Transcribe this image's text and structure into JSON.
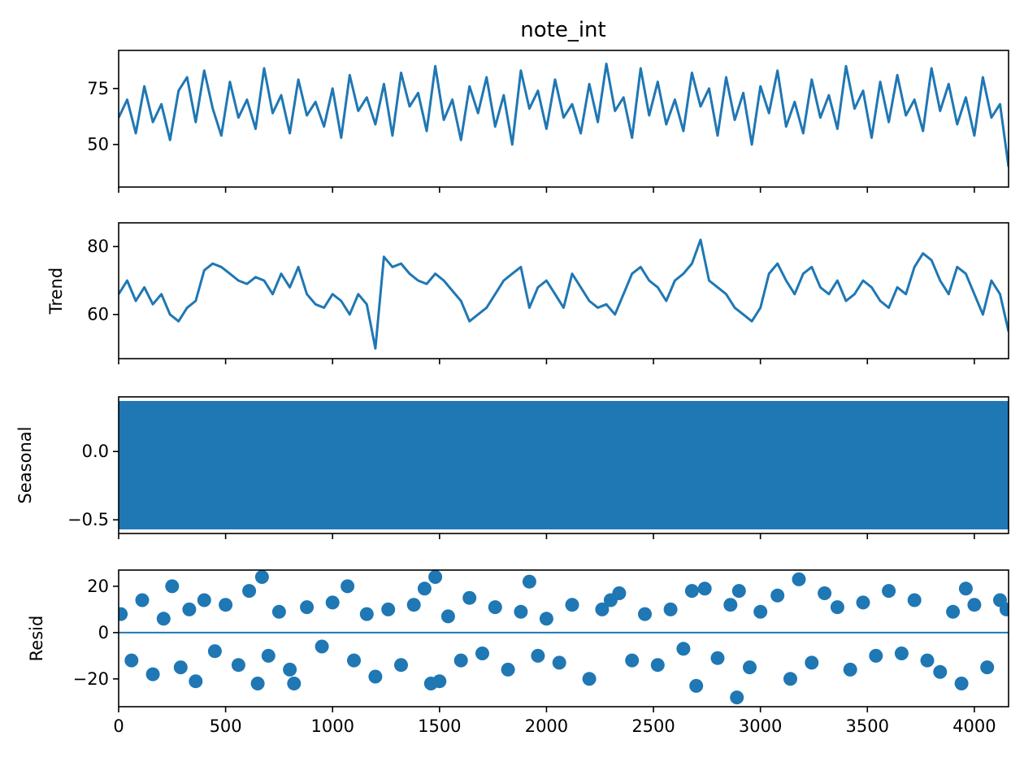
{
  "chart_data": {
    "type": "line",
    "title": "note_int",
    "grid": false,
    "series_color": "#1f77b4",
    "x_range": [
      0,
      4160
    ],
    "x_ticks": [
      0,
      500,
      1000,
      1500,
      2000,
      2500,
      3000,
      3500,
      4000
    ],
    "x_tick_labels": [
      "0",
      "500",
      "1000",
      "1500",
      "2000",
      "2500",
      "3000",
      "3500",
      "4000"
    ],
    "panels": [
      {
        "id": "observed",
        "type": "line",
        "ylabel": "",
        "ylim": [
          31,
          92
        ],
        "y_ticks": [
          50,
          75
        ],
        "y_tick_labels": [
          "50",
          "75"
        ],
        "x_tick_labels_visible": false,
        "series": [
          {
            "x": [
              0,
              40,
              80,
              120,
              160,
              200,
              240,
              280,
              320,
              360,
              400,
              440,
              480,
              520,
              560,
              600,
              640,
              680,
              720,
              760,
              800,
              840,
              880,
              920,
              960,
              1000,
              1040,
              1080,
              1120,
              1160,
              1200,
              1240,
              1280,
              1320,
              1360,
              1400,
              1440,
              1480,
              1520,
              1560,
              1600,
              1640,
              1680,
              1720,
              1760,
              1800,
              1840,
              1880,
              1920,
              1960,
              2000,
              2040,
              2080,
              2120,
              2160,
              2200,
              2240,
              2280,
              2320,
              2360,
              2400,
              2440,
              2480,
              2520,
              2560,
              2600,
              2640,
              2680,
              2720,
              2760,
              2800,
              2840,
              2880,
              2920,
              2960,
              3000,
              3040,
              3080,
              3120,
              3160,
              3200,
              3240,
              3280,
              3320,
              3360,
              3400,
              3440,
              3480,
              3520,
              3560,
              3600,
              3640,
              3680,
              3720,
              3760,
              3800,
              3840,
              3880,
              3920,
              3960,
              4000,
              4040,
              4080,
              4120,
              4160
            ],
            "y": [
              62,
              70,
              55,
              76,
              60,
              68,
              52,
              74,
              80,
              60,
              83,
              66,
              54,
              78,
              62,
              70,
              57,
              84,
              64,
              72,
              55,
              79,
              63,
              69,
              58,
              75,
              53,
              81,
              65,
              71,
              59,
              77,
              54,
              82,
              67,
              73,
              56,
              85,
              61,
              70,
              52,
              76,
              64,
              80,
              58,
              72,
              50,
              83,
              66,
              74,
              57,
              79,
              62,
              68,
              55,
              77,
              60,
              86,
              65,
              71,
              53,
              84,
              63,
              78,
              59,
              70,
              56,
              82,
              67,
              75,
              54,
              80,
              61,
              73,
              50,
              76,
              64,
              83,
              58,
              69,
              55,
              79,
              62,
              72,
              57,
              85,
              66,
              74,
              53,
              78,
              60,
              81,
              63,
              70,
              56,
              84,
              65,
              77,
              59,
              71,
              54,
              80,
              62,
              68,
              40
            ]
          }
        ]
      },
      {
        "id": "trend",
        "type": "line",
        "ylabel": "Trend",
        "ylim": [
          47,
          87
        ],
        "y_ticks": [
          60,
          80
        ],
        "y_tick_labels": [
          "60",
          "80"
        ],
        "x_tick_labels_visible": false,
        "series": [
          {
            "x": [
              0,
              40,
              80,
              120,
              160,
              200,
              240,
              280,
              320,
              360,
              400,
              440,
              480,
              520,
              560,
              600,
              640,
              680,
              720,
              760,
              800,
              840,
              880,
              920,
              960,
              1000,
              1040,
              1080,
              1120,
              1160,
              1200,
              1240,
              1280,
              1320,
              1360,
              1400,
              1440,
              1480,
              1520,
              1560,
              1600,
              1640,
              1680,
              1720,
              1760,
              1800,
              1840,
              1880,
              1920,
              1960,
              2000,
              2040,
              2080,
              2120,
              2160,
              2200,
              2240,
              2280,
              2320,
              2360,
              2400,
              2440,
              2480,
              2520,
              2560,
              2600,
              2640,
              2680,
              2720,
              2760,
              2800,
              2840,
              2880,
              2920,
              2960,
              3000,
              3040,
              3080,
              3120,
              3160,
              3200,
              3240,
              3280,
              3320,
              3360,
              3400,
              3440,
              3480,
              3520,
              3560,
              3600,
              3640,
              3680,
              3720,
              3760,
              3800,
              3840,
              3880,
              3920,
              3960,
              4000,
              4040,
              4080,
              4120,
              4160
            ],
            "y": [
              66,
              70,
              64,
              68,
              63,
              66,
              60,
              58,
              62,
              64,
              73,
              75,
              74,
              72,
              70,
              69,
              71,
              70,
              66,
              72,
              68,
              74,
              66,
              63,
              62,
              66,
              64,
              60,
              66,
              63,
              50,
              77,
              74,
              75,
              72,
              70,
              69,
              72,
              70,
              67,
              64,
              58,
              60,
              62,
              66,
              70,
              72,
              74,
              62,
              68,
              70,
              66,
              62,
              72,
              68,
              64,
              62,
              63,
              60,
              66,
              72,
              74,
              70,
              68,
              64,
              70,
              72,
              75,
              82,
              70,
              68,
              66,
              62,
              60,
              58,
              62,
              72,
              75,
              70,
              66,
              72,
              74,
              68,
              66,
              70,
              64,
              66,
              70,
              68,
              64,
              62,
              68,
              66,
              74,
              78,
              76,
              70,
              66,
              74,
              72,
              66,
              60,
              70,
              66,
              55
            ]
          }
        ]
      },
      {
        "id": "seasonal",
        "type": "area",
        "ylabel": "Seasonal",
        "ylim": [
          -0.6,
          0.4
        ],
        "y_ticks": [
          -0.5,
          0.0
        ],
        "y_tick_labels": [
          "−0.5",
          "0.0"
        ],
        "x_tick_labels_visible": false,
        "series": [
          {
            "band_min": -0.57,
            "band_max": 0.37
          }
        ]
      },
      {
        "id": "resid",
        "type": "scatter",
        "ylabel": "Resid",
        "ylim": [
          -32,
          27
        ],
        "y_ticks": [
          -20,
          0,
          20
        ],
        "y_tick_labels": [
          "−20",
          "0",
          "20"
        ],
        "x_tick_labels_visible": true,
        "series": [
          {
            "x": [
              10,
              60,
              110,
              160,
              210,
              250,
              290,
              330,
              360,
              400,
              450,
              500,
              560,
              610,
              650,
              670,
              700,
              750,
              800,
              820,
              880,
              950,
              1000,
              1070,
              1100,
              1160,
              1200,
              1260,
              1320,
              1380,
              1430,
              1460,
              1480,
              1500,
              1540,
              1600,
              1640,
              1700,
              1760,
              1820,
              1880,
              1920,
              1960,
              2000,
              2060,
              2120,
              2200,
              2260,
              2300,
              2340,
              2400,
              2460,
              2520,
              2580,
              2640,
              2680,
              2700,
              2740,
              2800,
              2860,
              2890,
              2900,
              2950,
              3000,
              3080,
              3140,
              3180,
              3240,
              3300,
              3360,
              3420,
              3480,
              3540,
              3600,
              3660,
              3720,
              3780,
              3840,
              3900,
              3940,
              3960,
              4000,
              4060,
              4120,
              4150
            ],
            "y": [
              8,
              -12,
              14,
              -18,
              6,
              20,
              -15,
              10,
              -21,
              14,
              -8,
              12,
              -14,
              18,
              -22,
              24,
              -10,
              9,
              -16,
              -22,
              11,
              -6,
              13,
              20,
              -12,
              8,
              -19,
              10,
              -14,
              12,
              19,
              -22,
              24,
              -21,
              7,
              -12,
              15,
              -9,
              11,
              -16,
              9,
              22,
              -10,
              6,
              -13,
              12,
              -20,
              10,
              14,
              17,
              -12,
              8,
              -14,
              10,
              -7,
              18,
              -23,
              19,
              -11,
              12,
              -28,
              18,
              -15,
              9,
              16,
              -20,
              23,
              -13,
              17,
              11,
              -16,
              13,
              -10,
              18,
              -9,
              14,
              -12,
              -17,
              9,
              -22,
              19,
              12,
              -15,
              14,
              10
            ]
          }
        ]
      }
    ]
  }
}
